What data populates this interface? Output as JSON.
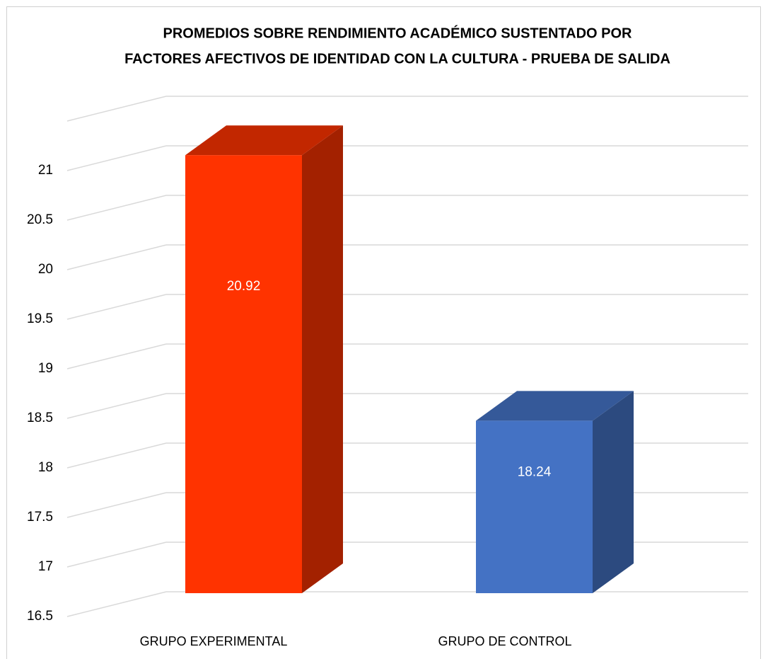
{
  "chart_data": {
    "type": "bar",
    "title": [
      "PROMEDIOS SOBRE RENDIMIENTO ACADÉMICO SUSTENTADO POR",
      "FACTORES AFECTIVOS DE IDENTIDAD CON LA CULTURA - PRUEBA DE SALIDA"
    ],
    "categories": [
      "GRUPO EXPERIMENTAL",
      "GRUPO DE CONTROL"
    ],
    "values": [
      20.92,
      18.24
    ],
    "colors": [
      "#ff3300",
      "#4472c4"
    ],
    "ylim": [
      16.5,
      21.5
    ],
    "yticks": [
      16.5,
      17,
      17.5,
      18,
      18.5,
      19,
      19.5,
      20,
      20.5,
      21
    ],
    "grid": true
  }
}
